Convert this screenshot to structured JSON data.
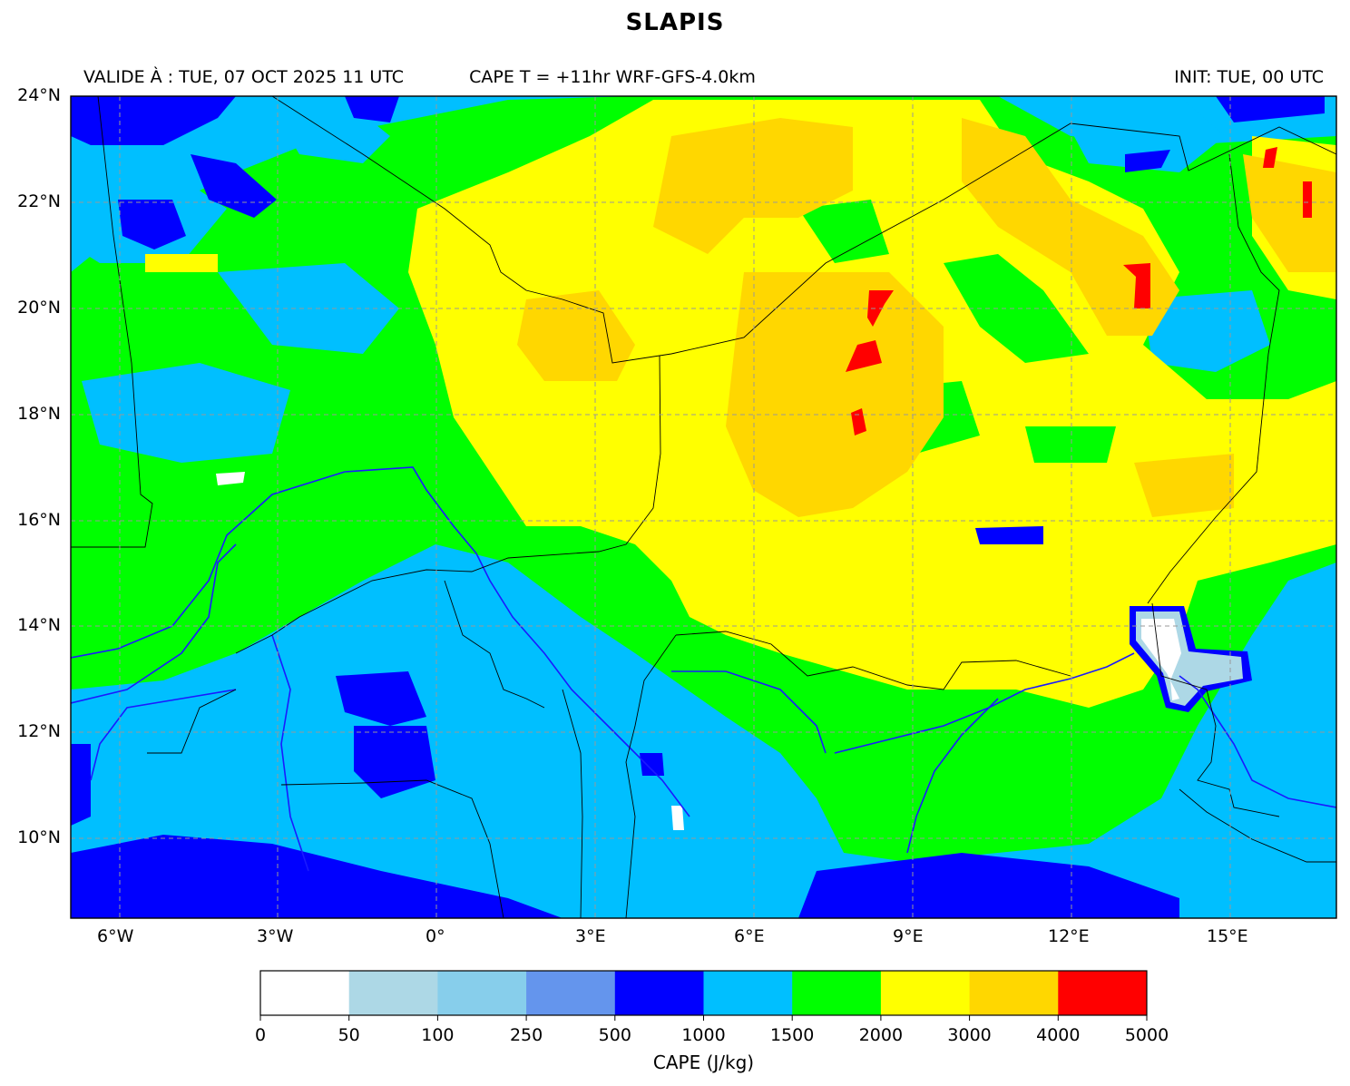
{
  "title": "SLAPIS",
  "header": {
    "valid": "VALIDE À : TUE, 07 OCT 2025 11 UTC",
    "product": "CAPE T = +11hr WRF-GFS-4.0km",
    "init": "INIT: TUE, 00 UTC"
  },
  "axes": {
    "lat_labels": [
      "24°N",
      "22°N",
      "20°N",
      "18°N",
      "16°N",
      "14°N",
      "12°N",
      "10°N"
    ],
    "lon_labels": [
      "6°W",
      "3°W",
      "0°",
      "3°E",
      "6°E",
      "9°E",
      "12°E",
      "15°E"
    ],
    "lat_values": [
      24,
      22,
      20,
      18,
      16,
      14,
      12,
      10
    ],
    "lon_values": [
      -6,
      -3,
      0,
      3,
      6,
      9,
      12,
      15
    ],
    "extent": {
      "lon_min": -6.9,
      "lon_max": 17.0,
      "lat_min": 8.5,
      "lat_max": 24.0
    }
  },
  "colorbar": {
    "label": "CAPE (J/kg)",
    "ticks": [
      "0",
      "50",
      "100",
      "250",
      "500",
      "1000",
      "1500",
      "2000",
      "3000",
      "4000",
      "5000"
    ],
    "colors": [
      "#ffffff",
      "#add8e6",
      "#87ceeb",
      "#6495ed",
      "#0000ff",
      "#00bfff",
      "#00ff00",
      "#ffff00",
      "#ffd700",
      "#ff0000"
    ]
  }
}
